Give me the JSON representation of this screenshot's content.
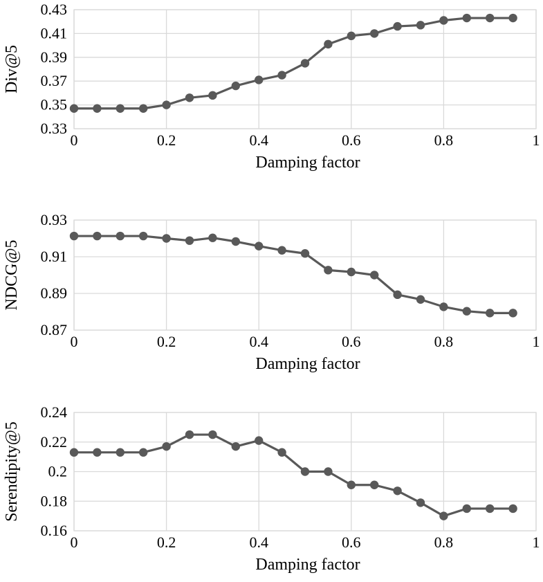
{
  "chart_data": [
    {
      "type": "line",
      "title": "",
      "xlabel": "Damping factor",
      "ylabel": "Div@5",
      "xlim": [
        0,
        1
      ],
      "ylim": [
        0.33,
        0.43
      ],
      "x_ticks": [
        "0",
        "0.2",
        "0.4",
        "0.6",
        "0.8",
        "1"
      ],
      "x_tick_values": [
        0,
        0.2,
        0.4,
        0.6,
        0.8,
        1
      ],
      "y_ticks": [
        "0.33",
        "0.35",
        "0.37",
        "0.39",
        "0.41",
        "0.43"
      ],
      "y_tick_values": [
        0.33,
        0.35,
        0.37,
        0.39,
        0.41,
        0.43
      ],
      "grid": true,
      "line_color": "#595959",
      "marker_color": "#595959",
      "x": [
        0,
        0.05,
        0.1,
        0.15,
        0.2,
        0.25,
        0.3,
        0.35,
        0.4,
        0.45,
        0.5,
        0.55,
        0.6,
        0.65,
        0.7,
        0.75,
        0.8,
        0.85,
        0.9,
        0.95
      ],
      "values": [
        0.347,
        0.347,
        0.347,
        0.347,
        0.35,
        0.356,
        0.358,
        0.366,
        0.371,
        0.375,
        0.385,
        0.401,
        0.408,
        0.41,
        0.416,
        0.417,
        0.421,
        0.423,
        0.423,
        0.423
      ]
    },
    {
      "type": "line",
      "title": "",
      "xlabel": "Damping factor",
      "ylabel": "NDCG@5",
      "xlim": [
        0,
        1
      ],
      "ylim": [
        0.87,
        0.93
      ],
      "x_ticks": [
        "0",
        "0.2",
        "0.4",
        "0.6",
        "0.8",
        "1"
      ],
      "x_tick_values": [
        0,
        0.2,
        0.4,
        0.6,
        0.8,
        1
      ],
      "y_ticks": [
        "0.87",
        "0.89",
        "0.91",
        "0.93"
      ],
      "y_tick_values": [
        0.87,
        0.89,
        0.91,
        0.93
      ],
      "grid": true,
      "line_color": "#595959",
      "marker_color": "#595959",
      "x": [
        0,
        0.05,
        0.1,
        0.15,
        0.2,
        0.25,
        0.3,
        0.35,
        0.4,
        0.45,
        0.5,
        0.55,
        0.6,
        0.65,
        0.7,
        0.75,
        0.8,
        0.85,
        0.9,
        0.95
      ],
      "values": [
        0.9213,
        0.9213,
        0.9213,
        0.9213,
        0.92,
        0.9188,
        0.9203,
        0.9183,
        0.9158,
        0.9135,
        0.9118,
        0.9027,
        0.9017,
        0.9,
        0.8893,
        0.8867,
        0.8827,
        0.8803,
        0.8793,
        0.8793
      ]
    },
    {
      "type": "line",
      "title": "",
      "xlabel": "Damping factor",
      "ylabel": "Serendipity@5",
      "xlim": [
        0,
        1
      ],
      "ylim": [
        0.16,
        0.24
      ],
      "x_ticks": [
        "0",
        "0.2",
        "0.4",
        "0.6",
        "0.8",
        "1"
      ],
      "x_tick_values": [
        0,
        0.2,
        0.4,
        0.6,
        0.8,
        1
      ],
      "y_ticks": [
        "0.16",
        "0.18",
        "0.2",
        "0.22",
        "0.24"
      ],
      "y_tick_values": [
        0.16,
        0.18,
        0.2,
        0.22,
        0.24
      ],
      "grid": true,
      "line_color": "#595959",
      "marker_color": "#595959",
      "x": [
        0,
        0.05,
        0.1,
        0.15,
        0.2,
        0.25,
        0.3,
        0.35,
        0.4,
        0.45,
        0.5,
        0.55,
        0.6,
        0.65,
        0.7,
        0.75,
        0.8,
        0.85,
        0.9,
        0.95
      ],
      "values": [
        0.213,
        0.213,
        0.213,
        0.213,
        0.217,
        0.225,
        0.225,
        0.217,
        0.221,
        0.213,
        0.2,
        0.2,
        0.191,
        0.191,
        0.187,
        0.179,
        0.17,
        0.175,
        0.175,
        0.175
      ]
    }
  ]
}
